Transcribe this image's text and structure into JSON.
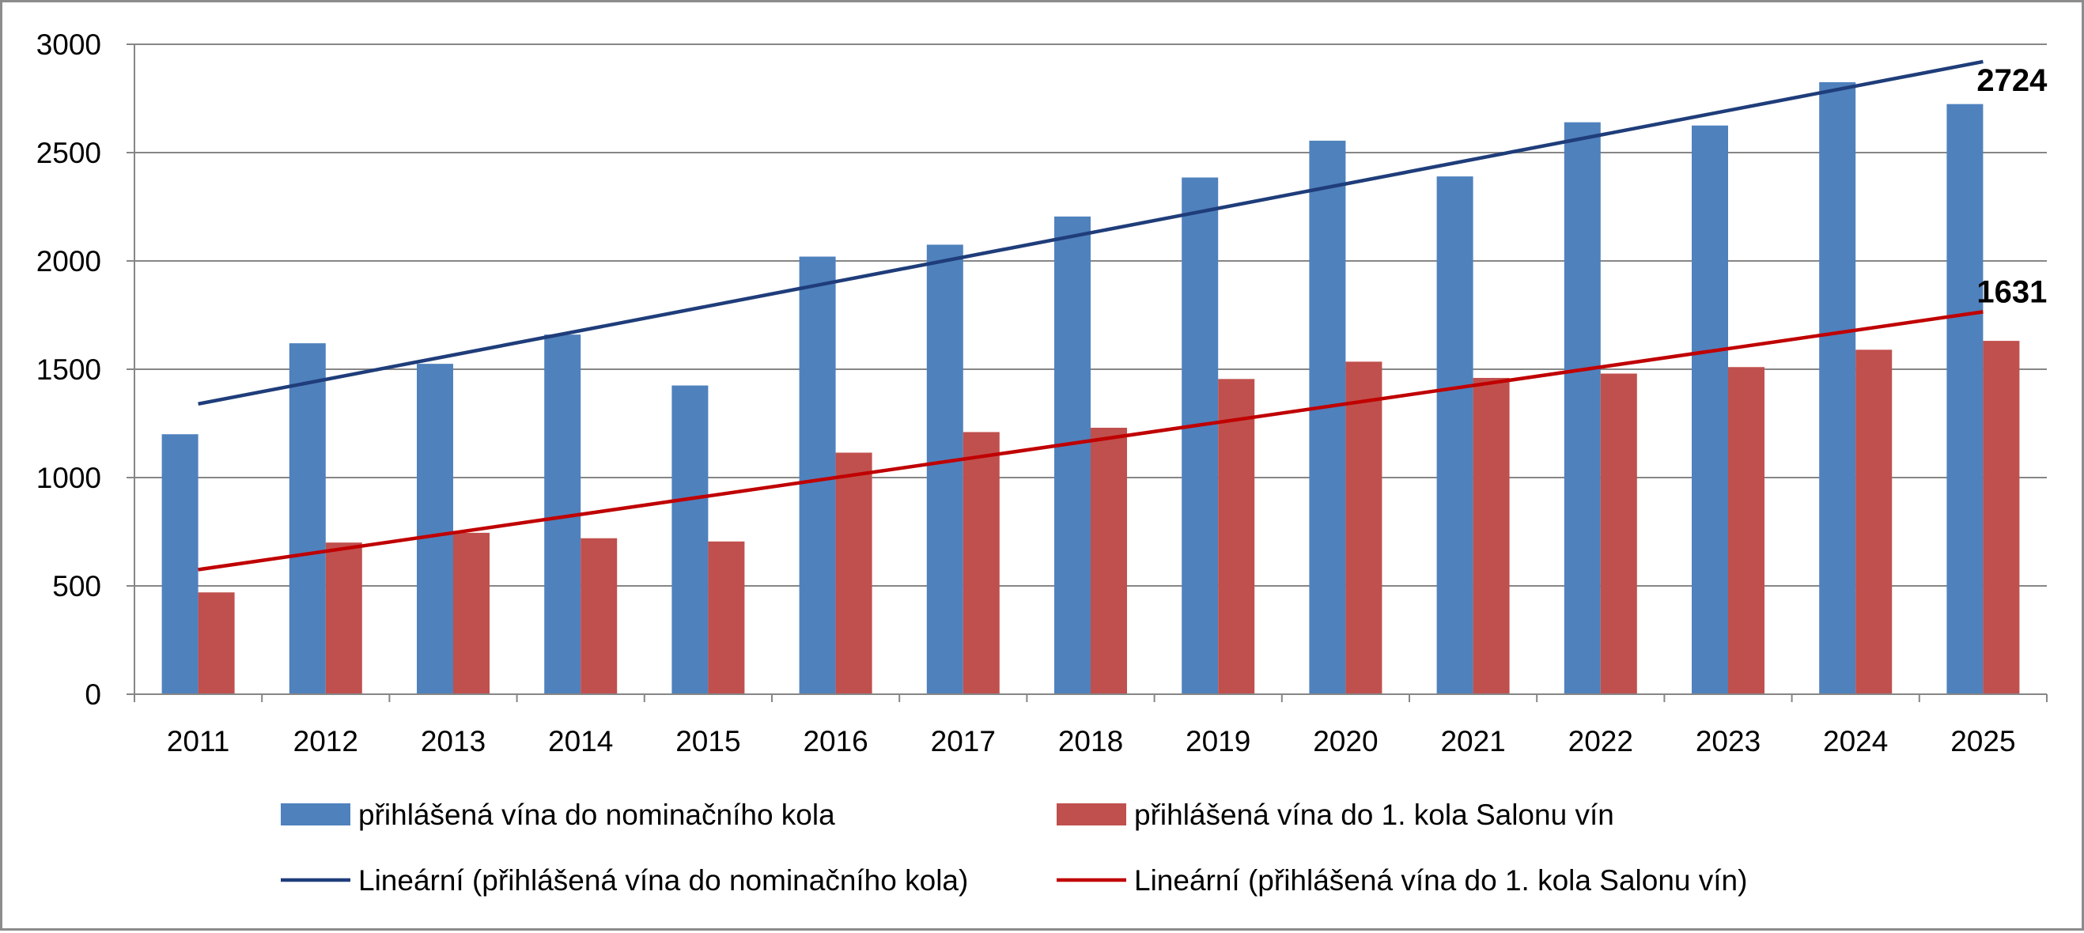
{
  "chart_data": {
    "type": "bar",
    "title": "",
    "xlabel": "",
    "ylabel": "",
    "ylim": [
      0,
      3000
    ],
    "yticks": [
      0,
      500,
      1000,
      1500,
      2000,
      2500,
      3000
    ],
    "grid": true,
    "legend_position": "bottom",
    "categories": [
      "2011",
      "2012",
      "2013",
      "2014",
      "2015",
      "2016",
      "2017",
      "2018",
      "2019",
      "2020",
      "2021",
      "2022",
      "2023",
      "2024",
      "2025"
    ],
    "series": [
      {
        "name": "přihlášená vína do nominačního kola",
        "color": "#4f81bd",
        "values": [
          1200,
          1620,
          1525,
          1660,
          1425,
          2020,
          2075,
          2205,
          2385,
          2555,
          2390,
          2640,
          2625,
          2825,
          2724
        ]
      },
      {
        "name": "přihlášená vína do 1. kola Salonu vín",
        "color": "#c0504d",
        "values": [
          470,
          700,
          745,
          720,
          705,
          1115,
          1210,
          1230,
          1455,
          1535,
          1460,
          1480,
          1510,
          1590,
          1631
        ]
      }
    ],
    "trendlines": [
      {
        "name": "Lineární (přihlášená vína do nominačního kola)",
        "color": "#1f3d7a",
        "start": [
          2011,
          1340
        ],
        "end": [
          2025,
          2920
        ]
      },
      {
        "name": "Lineární (přihlášená vína do 1. kola Salonu vín)",
        "color": "#c00000",
        "start": [
          2011,
          575
        ],
        "end": [
          2025,
          1765
        ]
      }
    ],
    "annotations": [
      {
        "text": "2724",
        "series": 0,
        "category": "2025"
      },
      {
        "text": "1631",
        "series": 1,
        "category": "2025"
      }
    ]
  }
}
